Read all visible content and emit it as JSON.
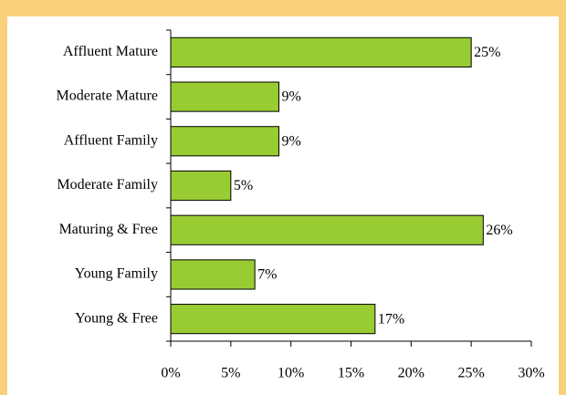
{
  "chart_data": {
    "type": "bar",
    "orientation": "horizontal",
    "categories": [
      "Affluent Mature",
      "Moderate Mature",
      "Affluent Family",
      "Moderate Family",
      "Maturing & Free",
      "Young Family",
      "Young & Free"
    ],
    "values": [
      25,
      9,
      9,
      5,
      26,
      7,
      17
    ],
    "value_labels": [
      "25%",
      "9%",
      "9%",
      "5%",
      "26%",
      "7%",
      "17%"
    ],
    "color": "#99cc33",
    "xlim": [
      0,
      30
    ],
    "xticks": [
      {
        "value": 0,
        "label": "0%"
      },
      {
        "value": 5,
        "label": "5%"
      },
      {
        "value": 10,
        "label": "10%"
      },
      {
        "value": 15,
        "label": "15%"
      },
      {
        "value": 20,
        "label": "20%"
      },
      {
        "value": 25,
        "label": "25%"
      },
      {
        "value": 30,
        "label": "30%"
      }
    ],
    "grid": false
  }
}
